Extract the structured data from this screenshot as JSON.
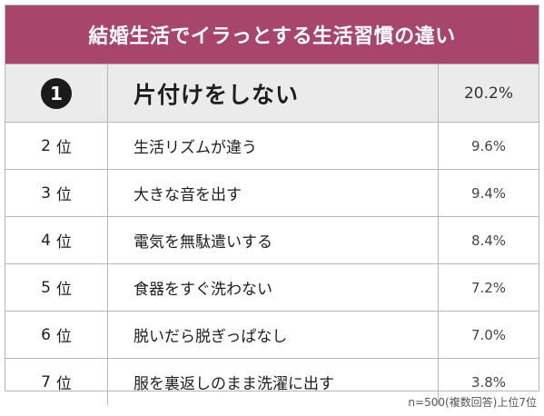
{
  "header": {
    "title": "結婚生活でイラっとする生活習慣の違い",
    "background_color": "#a8456a"
  },
  "ranking": [
    {
      "rank": "1",
      "suffix": "",
      "item": "片付けをしない",
      "percent": "20.2%"
    },
    {
      "rank": "2",
      "suffix": "位",
      "item": "生活リズムが違う",
      "percent": "9.6%"
    },
    {
      "rank": "3",
      "suffix": "位",
      "item": "大きな音を出す",
      "percent": "9.4%"
    },
    {
      "rank": "4",
      "suffix": "位",
      "item": "電気を無駄遣いする",
      "percent": "8.4%"
    },
    {
      "rank": "5",
      "suffix": "位",
      "item": "食器をすぐ洗わない",
      "percent": "7.2%"
    },
    {
      "rank": "6",
      "suffix": "位",
      "item": "脱いだら脱ぎっぱなし",
      "percent": "7.0%"
    },
    {
      "rank": "7",
      "suffix": "位",
      "item": "服を裏返しのまま洗濯に出す",
      "percent": "3.8%"
    }
  ],
  "top_row_background": "#ebebeb",
  "footnote": "n=500(複数回答)上位7位"
}
